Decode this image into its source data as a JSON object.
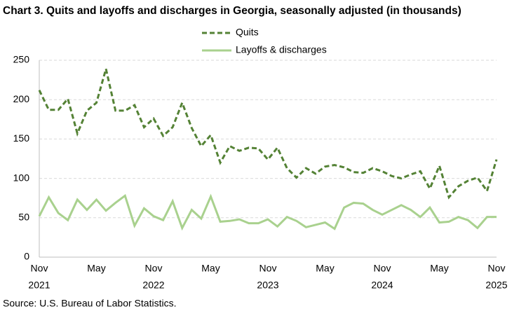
{
  "chart_data": {
    "type": "line",
    "title": "Chart 3. Quits and layoffs and discharges in Georgia, seasonally adjusted (in thousands)",
    "source": "Source: U.S. Bureau of Labor Statistics.",
    "categories": [
      "Nov",
      null,
      null,
      null,
      null,
      null,
      "May",
      null,
      null,
      null,
      null,
      null,
      "Nov",
      null,
      null,
      null,
      null,
      null,
      "May",
      null,
      null,
      null,
      null,
      null,
      "Nov",
      null,
      null,
      null,
      null,
      null,
      "May",
      null,
      null,
      null,
      null,
      null,
      "Nov",
      null,
      null,
      null,
      null,
      null,
      "May",
      null,
      null,
      null,
      null,
      null,
      "Nov"
    ],
    "years": [
      "2021",
      null,
      null,
      null,
      null,
      null,
      null,
      null,
      null,
      null,
      null,
      null,
      "2022",
      null,
      null,
      null,
      null,
      null,
      null,
      null,
      null,
      null,
      null,
      null,
      "2023",
      null,
      null,
      null,
      null,
      null,
      null,
      null,
      null,
      null,
      null,
      null,
      "2024",
      null,
      null,
      null,
      null,
      null,
      null,
      null,
      null,
      null,
      null,
      null,
      "2025"
    ],
    "series": [
      {
        "name": "Quits",
        "color": "#548235",
        "dashed": true,
        "values": [
          212,
          187,
          187,
          201,
          157,
          186,
          196,
          239,
          186,
          186,
          193,
          165,
          176,
          154,
          165,
          196,
          164,
          141,
          155,
          120,
          141,
          135,
          139,
          138,
          124,
          139,
          113,
          101,
          113,
          106,
          115,
          117,
          114,
          108,
          107,
          113,
          109,
          103,
          100,
          105,
          109,
          87,
          116,
          76,
          90,
          97,
          101,
          84,
          124
        ]
      },
      {
        "name": "Layoffs & discharges",
        "color": "#a9d18e",
        "dashed": false,
        "values": [
          52,
          76,
          56,
          47,
          73,
          60,
          73,
          59,
          69,
          78,
          40,
          62,
          52,
          47,
          71,
          37,
          60,
          49,
          77,
          45,
          46,
          48,
          43,
          43,
          48,
          39,
          51,
          46,
          38,
          41,
          44,
          36,
          63,
          69,
          68,
          60,
          54,
          60,
          66,
          60,
          51,
          63,
          44,
          45,
          51,
          47,
          37,
          51,
          51
        ]
      }
    ],
    "ylim": [
      0,
      250
    ],
    "yticks": [
      0,
      50,
      100,
      150,
      200,
      250
    ],
    "grid": true
  }
}
